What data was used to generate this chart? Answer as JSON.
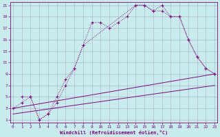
{
  "xlabel": "Windchill (Refroidissement éolien,°C)",
  "bg_color": "#c8ecec",
  "line_color": "#800080",
  "grid_color": "#aaaacc",
  "xlim": [
    0,
    23
  ],
  "ylim": [
    1,
    21
  ],
  "xticks": [
    0,
    1,
    2,
    3,
    4,
    5,
    6,
    7,
    8,
    9,
    10,
    11,
    12,
    13,
    14,
    15,
    16,
    17,
    18,
    19,
    20,
    21,
    22,
    23
  ],
  "yticks": [
    1,
    3,
    5,
    7,
    9,
    11,
    13,
    15,
    17,
    19,
    21
  ],
  "series": [
    {
      "x": [
        0,
        1,
        2,
        3,
        4,
        5,
        6,
        7,
        8,
        9,
        10,
        11,
        12,
        13,
        14,
        15,
        16,
        17,
        18,
        19,
        20,
        21,
        22,
        23
      ],
      "y": [
        3,
        4,
        5,
        1,
        2,
        4,
        7,
        10,
        14,
        18,
        18,
        17,
        18,
        19,
        21,
        21,
        20,
        21,
        19,
        19,
        15,
        12,
        10,
        9
      ],
      "markers": true
    },
    {
      "x": [
        1,
        2,
        3,
        4,
        5,
        6,
        7,
        8,
        14,
        15,
        16,
        17,
        18,
        19,
        20,
        21,
        22,
        23
      ],
      "y": [
        5,
        5,
        1,
        2,
        5,
        8,
        10,
        14,
        21,
        21,
        20,
        20,
        19,
        19,
        15,
        12,
        10,
        9
      ],
      "markers": false
    },
    {
      "x": [
        0,
        23
      ],
      "y": [
        3,
        9
      ],
      "markers": false
    },
    {
      "x": [
        0,
        23
      ],
      "y": [
        2,
        7
      ],
      "markers": false
    }
  ]
}
